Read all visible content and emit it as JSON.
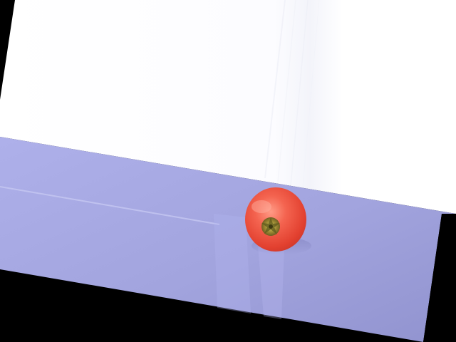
{
  "scene": {
    "subject": "tomato",
    "colors": {
      "border": "#000000",
      "wall": "#ffffff",
      "table": "#a4a6e2",
      "table_shadow": "#8f8fc8",
      "tomato": "#ec4f3e",
      "tomato_highlight": "#ff8f7d",
      "stem": "#8b7a2a"
    }
  }
}
